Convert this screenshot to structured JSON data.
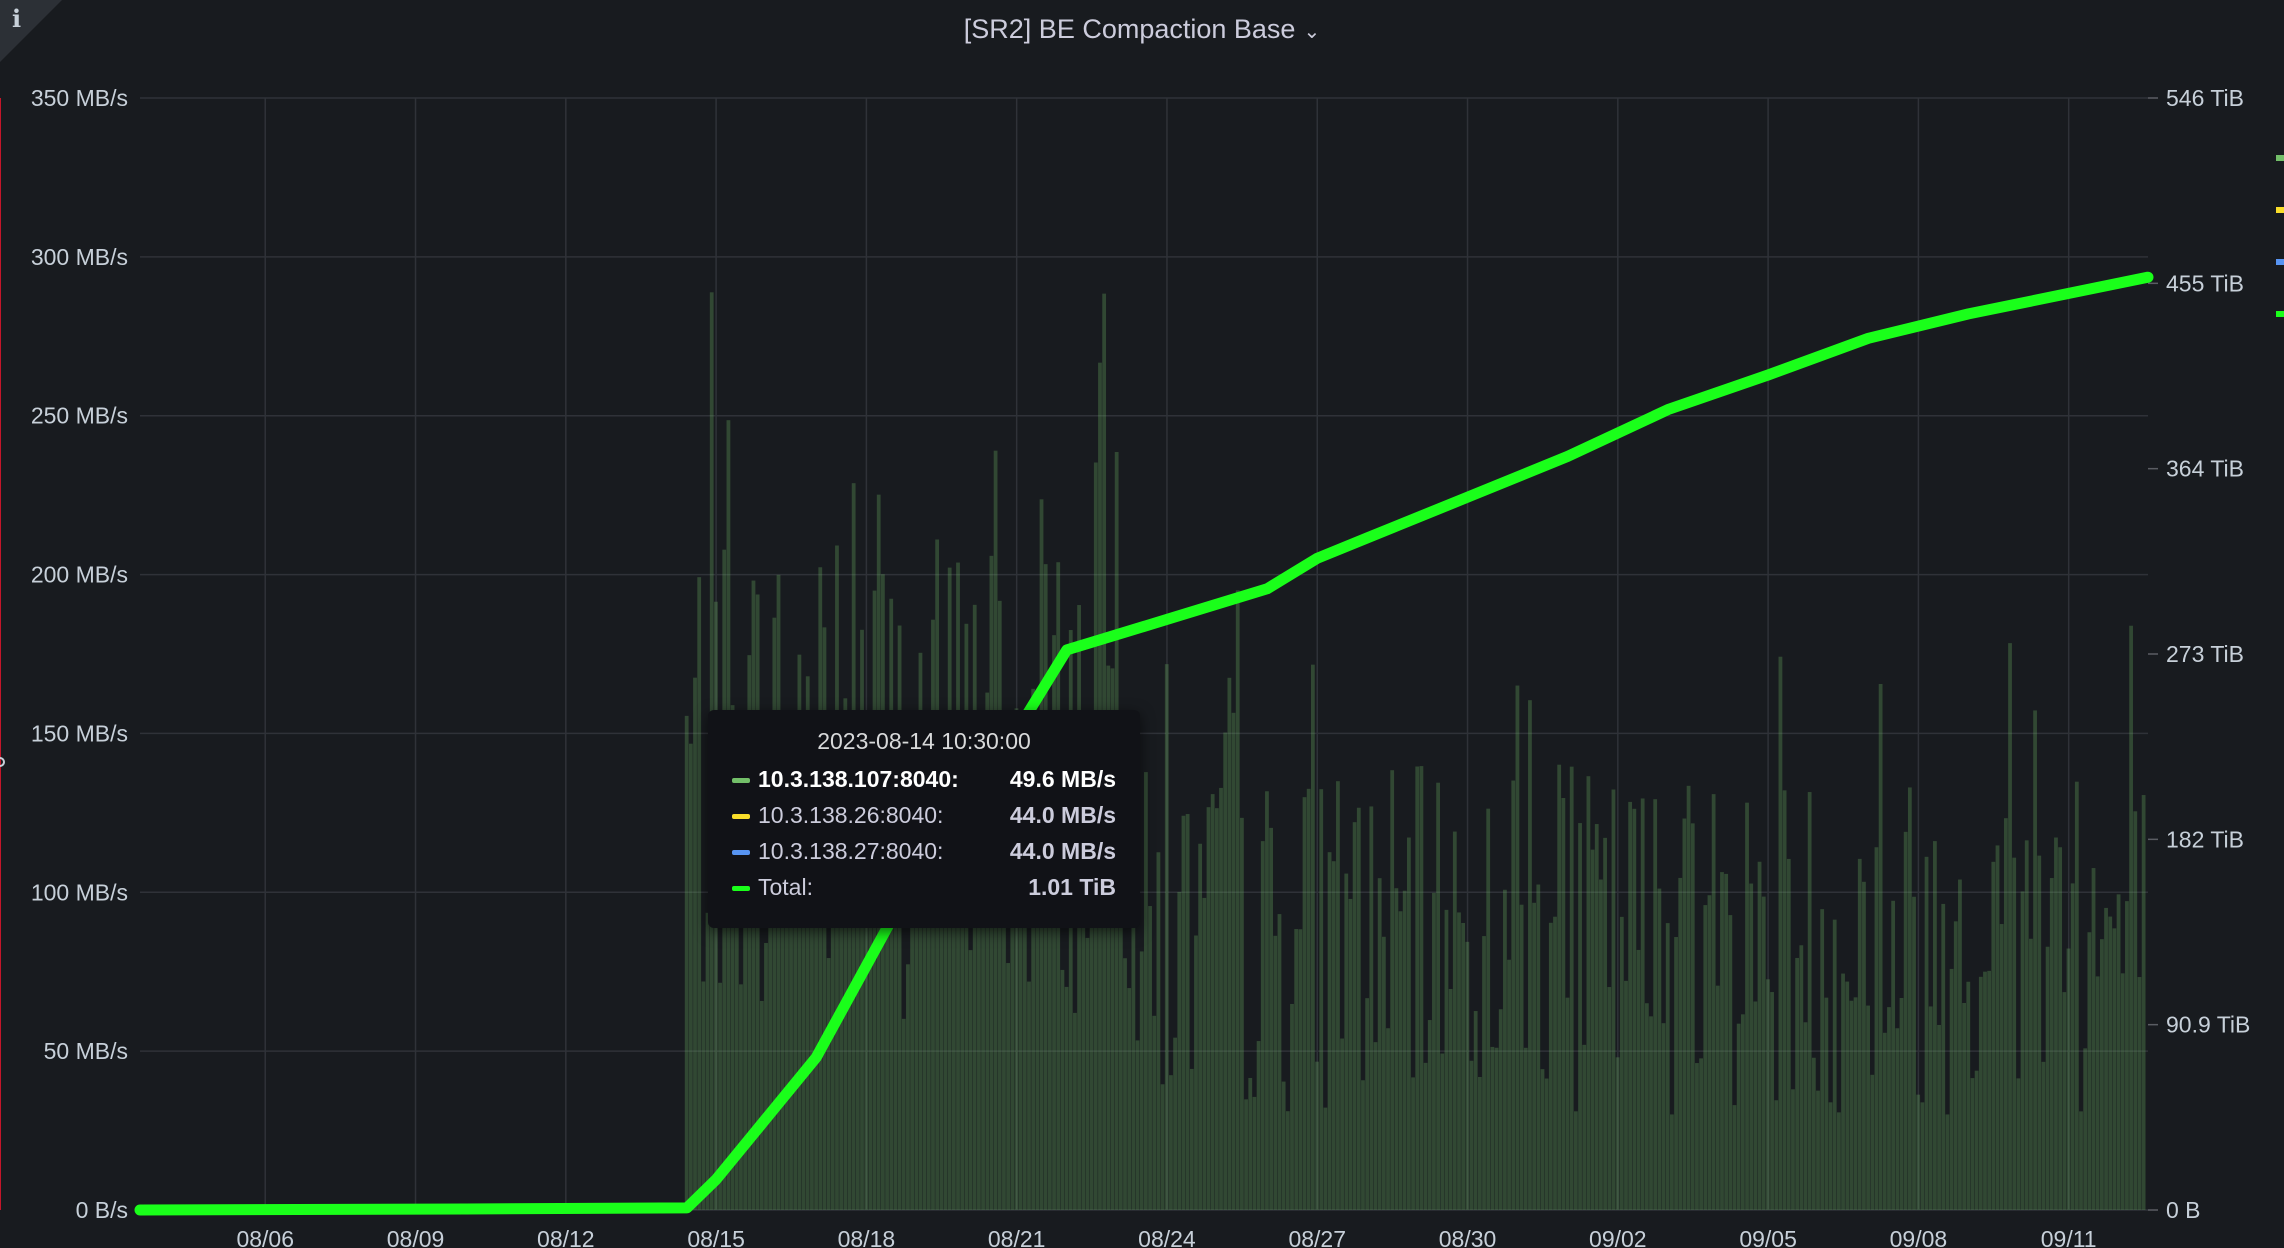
{
  "panel": {
    "info_icon": "info-icon",
    "title": "[SR2] BE Compaction Base",
    "menu_icon": "chevron-down-icon"
  },
  "chart_data": {
    "type": "line",
    "title": "[SR2] BE Compaction Base",
    "x_ticks": [
      "08/06",
      "08/09",
      "08/12",
      "08/15",
      "08/18",
      "08/21",
      "08/24",
      "08/27",
      "08/30",
      "09/02",
      "09/05",
      "09/08",
      "09/11"
    ],
    "x_range": [
      "2023-08-03 12:00",
      "2023-09-12 14:00"
    ],
    "y_left_ticks": [
      "0 B/s",
      "50 MB/s",
      "100 MB/s",
      "150 MB/s",
      "200 MB/s",
      "250 MB/s",
      "300 MB/s",
      "350 MB/s"
    ],
    "y_left_range": [
      0,
      350
    ],
    "y_left_unit": "MB/s",
    "y_right_ticks": [
      "0 B",
      "90.9 TiB",
      "182 TiB",
      "273 TiB",
      "364 TiB",
      "455 TiB",
      "546 TiB"
    ],
    "y_right_range": [
      0,
      546
    ],
    "y_right_unit": "TiB",
    "grid": true,
    "legend": "right",
    "series": [
      {
        "name": "10.3.138.107:8040",
        "color": "#73bf69",
        "axis": "left",
        "style": "bars",
        "pattern": "bursty rate 40-180 MB/s from 08/14 to 09/12, peaks up to ~290 MB/s around 08/15-08/22"
      },
      {
        "name": "10.3.138.26:8040",
        "color": "#fade2a",
        "axis": "left",
        "style": "bars"
      },
      {
        "name": "10.3.138.27:8040",
        "color": "#5794f2",
        "axis": "left",
        "style": "bars"
      },
      {
        "name": "Total",
        "color": "#1aff1a",
        "axis": "right",
        "style": "line",
        "x": [
          "08/03",
          "08/10",
          "08/14",
          "08/15",
          "08/16",
          "08/17",
          "08/18",
          "08/19",
          "08/20",
          "08/21",
          "08/22",
          "08/24",
          "08/26",
          "08/27",
          "08/28",
          "08/30",
          "09/01",
          "09/03",
          "09/05",
          "09/07",
          "09/09",
          "09/12"
        ],
        "values": [
          0,
          0.5,
          1.01,
          15,
          45,
          75,
          120,
          165,
          205,
          235,
          275,
          290,
          305,
          320,
          330,
          350,
          370,
          393,
          410,
          428,
          440,
          458
        ]
      }
    ]
  },
  "tooltip": {
    "time": "2023-08-14 10:30:00",
    "rows": [
      {
        "name": "10.3.138.107:8040:",
        "value": "49.6 MB/s",
        "color": "#73bf69"
      },
      {
        "name": "10.3.138.26:8040:",
        "value": "44.0 MB/s",
        "color": "#fade2a"
      },
      {
        "name": "10.3.138.27:8040:",
        "value": "44.0 MB/s",
        "color": "#5794f2"
      },
      {
        "name": "Total:",
        "value": "1.01 TiB",
        "color": "#1aff1a"
      }
    ]
  },
  "cursor": {
    "time": "2023-08-14 10:30:00"
  }
}
